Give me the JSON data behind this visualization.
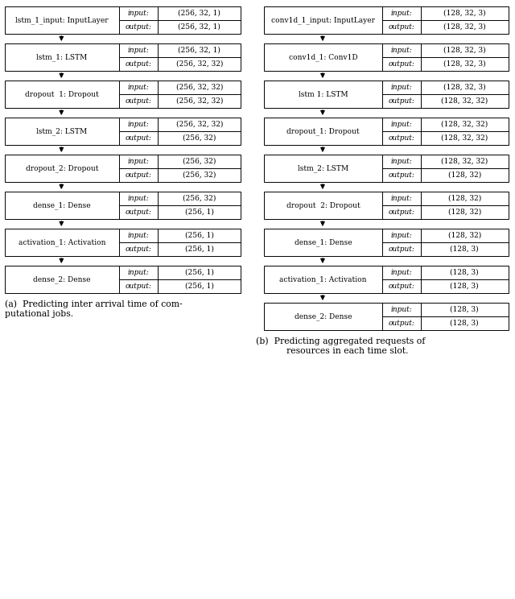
{
  "fig_width": 6.4,
  "fig_height": 7.44,
  "bg_color": "#ffffff",
  "box_facecolor": "#ffffff",
  "box_edgecolor": "#000000",
  "caption_a": "(a)  Predicting inter arrival time of com-(b)  Predicting aggregated requests of\nputational jobs.                                    resources in each time slot.",
  "left_layers": [
    {
      "name": "lstm_1_input: InputLayer",
      "input": "(256, 32, 1)",
      "output": "(256, 32, 1)"
    },
    {
      "name": "lstm_1: LSTM",
      "input": "(256, 32, 1)",
      "output": "(256, 32, 32)"
    },
    {
      "name": "dropout  1: Dropout",
      "input": "(256, 32, 32)",
      "output": "(256, 32, 32)"
    },
    {
      "name": "lstm_2: LSTM",
      "input": "(256, 32, 32)",
      "output": "(256, 32)"
    },
    {
      "name": "dropout_2: Dropout",
      "input": "(256, 32)",
      "output": "(256, 32)"
    },
    {
      "name": "dense_1: Dense",
      "input": "(256, 32)",
      "output": "(256, 1)"
    },
    {
      "name": "activation_1: Activation",
      "input": "(256, 1)",
      "output": "(256, 1)"
    },
    {
      "name": "dense_2: Dense",
      "input": "(256, 1)",
      "output": "(256, 1)"
    }
  ],
  "right_layers": [
    {
      "name": "conv1d_1_input: InputLayer",
      "input": "(128, 32, 3)",
      "output": "(128, 32, 3)"
    },
    {
      "name": "conv1d_1: Conv1D",
      "input": "(128, 32, 3)",
      "output": "(128, 32, 3)"
    },
    {
      "name": "lstm 1: LSTM",
      "input": "(128, 32, 3)",
      "output": "(128, 32, 32)"
    },
    {
      "name": "dropout_1: Dropout",
      "input": "(128, 32, 32)",
      "output": "(128, 32, 32)"
    },
    {
      "name": "lstm_2: LSTM",
      "input": "(128, 32, 32)",
      "output": "(128, 32)"
    },
    {
      "name": "dropout  2: Dropout",
      "input": "(128, 32)",
      "output": "(128, 32)"
    },
    {
      "name": "dense_1: Dense",
      "input": "(128, 32)",
      "output": "(128, 3)"
    },
    {
      "name": "activation_1: Activation",
      "input": "(128, 3)",
      "output": "(128, 3)"
    },
    {
      "name": "dense_2: Dense",
      "input": "(128, 3)",
      "output": "(128, 3)"
    }
  ]
}
